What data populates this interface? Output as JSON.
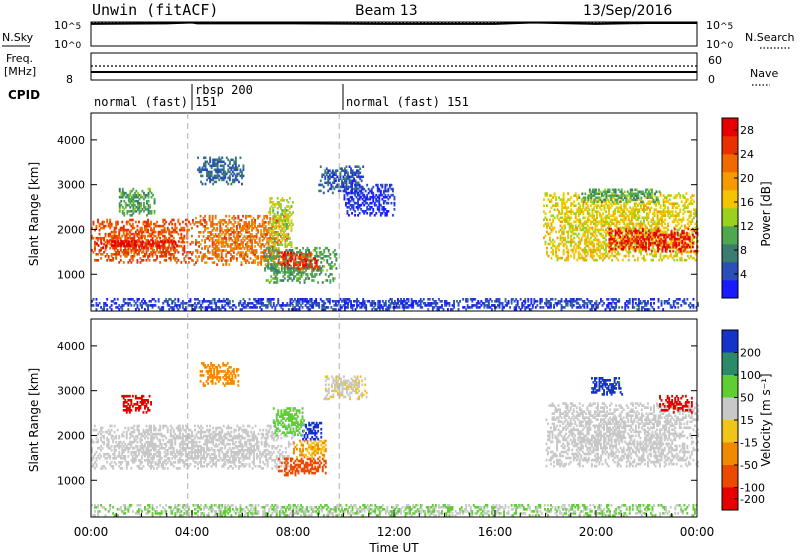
{
  "header": {
    "station": "Unwin (fitACF)",
    "beam": "Beam 13",
    "date": "13/Sep/2016"
  },
  "colors": {
    "power": [
      "#1a1aff",
      "#2a4fb8",
      "#3a7d6e",
      "#4fa84f",
      "#9ad11f",
      "#f5c400",
      "#f59a00",
      "#f06a00",
      "#e83000",
      "#e60000"
    ],
    "velocity": [
      "#1533c9",
      "#2b8a6a",
      "#5fce32",
      "#c8c8c8",
      "#f0c419",
      "#f08a00",
      "#ec4a00",
      "#e60000"
    ]
  },
  "chart_data": [
    {
      "type": "line",
      "name": "noise",
      "labels_left": [
        "N.Sky",
        "10^5",
        "10^0"
      ],
      "labels_right": [
        "10^5",
        "10^0",
        "N.Search"
      ],
      "ylim_log": [
        0,
        5
      ],
      "x_hours": [
        0,
        3,
        4,
        4.2,
        8,
        12,
        16,
        17.5,
        20,
        22,
        24
      ],
      "sky": [
        4.6,
        4.7,
        4.9,
        4.7,
        4.7,
        4.6,
        4.6,
        4.9,
        4.6,
        4.8,
        4.8
      ],
      "search": [
        4.9,
        4.9,
        4.9,
        4.9,
        4.9,
        4.9,
        4.9,
        4.9,
        4.9,
        4.9,
        4.9
      ]
    },
    {
      "type": "line",
      "name": "frequency",
      "labels_left": [
        "Freq.",
        "[MHz]",
        "8"
      ],
      "labels_right": [
        "60",
        "0",
        "Nave"
      ],
      "freq_mhz": 10.6,
      "ylim_left": [
        8,
        12
      ],
      "nave_right": 45,
      "ylim_right": [
        0,
        60
      ]
    },
    {
      "type": "table",
      "name": "cpid",
      "label": "CPID",
      "segments": [
        {
          "start_hour": 0,
          "text": "normal (fast) 151"
        },
        {
          "start_hour": 3.83,
          "text": "rbsp 200"
        },
        {
          "start_hour": 9.83,
          "text": "normal (fast) 151"
        }
      ]
    },
    {
      "type": "heatmap",
      "name": "power",
      "ylabel": "Slant Range [km]",
      "yticks": [
        1000,
        2000,
        3000,
        4000
      ],
      "ylim": [
        180,
        4600
      ],
      "xlim_hours": [
        0,
        24
      ],
      "colorbar": {
        "label": "Power [dB]",
        "ticks": [
          4,
          8,
          12,
          16,
          20,
          24,
          28
        ],
        "range": [
          0,
          30
        ]
      },
      "regions": [
        {
          "h0": 0.0,
          "h1": 4.0,
          "r0": 1250,
          "r1": 2200,
          "v": 24
        },
        {
          "h0": 0.2,
          "h1": 3.5,
          "r0": 1580,
          "r1": 1750,
          "v": 28
        },
        {
          "h0": 4.0,
          "h1": 7.8,
          "r0": 1200,
          "r1": 2300,
          "v": 22
        },
        {
          "h0": 7.0,
          "h1": 8.0,
          "r0": 1600,
          "r1": 2700,
          "v": 14
        },
        {
          "h0": 1.1,
          "h1": 2.5,
          "r0": 2300,
          "r1": 2900,
          "v": 10
        },
        {
          "h0": 4.2,
          "h1": 6.0,
          "r0": 3000,
          "r1": 3600,
          "v": 6
        },
        {
          "h0": 6.8,
          "h1": 9.7,
          "r0": 800,
          "r1": 1600,
          "v": 10
        },
        {
          "h0": 7.4,
          "h1": 9.0,
          "r0": 1100,
          "r1": 1500,
          "v": 26
        },
        {
          "h0": 9.0,
          "h1": 10.8,
          "r0": 2800,
          "r1": 3400,
          "v": 5
        },
        {
          "h0": 10.0,
          "h1": 12.0,
          "r0": 2300,
          "r1": 3000,
          "v": 3
        },
        {
          "h0": 17.9,
          "h1": 24.0,
          "r0": 1300,
          "r1": 2800,
          "v": 16
        },
        {
          "h0": 20.5,
          "h1": 24.0,
          "r0": 1500,
          "r1": 2000,
          "v": 27
        },
        {
          "h0": 19.3,
          "h1": 22.5,
          "r0": 2600,
          "r1": 2900,
          "v": 10
        },
        {
          "h0": 0.0,
          "h1": 24.0,
          "r0": 200,
          "r1": 450,
          "v": 4
        }
      ]
    },
    {
      "type": "heatmap",
      "name": "velocity",
      "ylabel": "Slant Range [km]",
      "yticks": [
        1000,
        2000,
        3000,
        4000
      ],
      "ylim": [
        180,
        4600
      ],
      "xlim_hours": [
        0,
        24
      ],
      "xticks": [
        "00:00",
        "04:00",
        "08:00",
        "12:00",
        "16:00",
        "20:00",
        "00:00"
      ],
      "xlabel": "Time UT",
      "colorbar": {
        "label": "Velocity [m s⁻¹]",
        "ticks": [
          "200",
          "100",
          "50",
          "15",
          "-15",
          "-50",
          "-100",
          "-200"
        ]
      },
      "regions": [
        {
          "h0": 0.0,
          "h1": 8.0,
          "r0": 1250,
          "r1": 2200,
          "v": 0
        },
        {
          "h0": 7.4,
          "h1": 9.3,
          "r0": 1100,
          "r1": 1500,
          "v": -120
        },
        {
          "h0": 8.0,
          "h1": 9.3,
          "r0": 1500,
          "r1": 1900,
          "v": -40
        },
        {
          "h0": 8.3,
          "h1": 9.1,
          "r0": 1900,
          "r1": 2300,
          "v": 250
        },
        {
          "h0": 7.2,
          "h1": 8.4,
          "r0": 2000,
          "r1": 2600,
          "v": 60
        },
        {
          "h0": 1.2,
          "h1": 2.4,
          "r0": 2500,
          "r1": 2900,
          "v": -220
        },
        {
          "h0": 4.3,
          "h1": 5.8,
          "r0": 3100,
          "r1": 3600,
          "v": -60
        },
        {
          "h0": 9.2,
          "h1": 10.9,
          "r0": 2800,
          "r1": 3300,
          "v": -10
        },
        {
          "h0": 18.0,
          "h1": 24.0,
          "r0": 1300,
          "r1": 2700,
          "v": 5
        },
        {
          "h0": 22.5,
          "h1": 23.8,
          "r0": 2500,
          "r1": 2900,
          "v": -230
        },
        {
          "h0": 19.8,
          "h1": 21.0,
          "r0": 2900,
          "r1": 3300,
          "v": 160
        },
        {
          "h0": 0.0,
          "h1": 24.0,
          "r0": 200,
          "r1": 450,
          "v": 30
        }
      ]
    }
  ]
}
